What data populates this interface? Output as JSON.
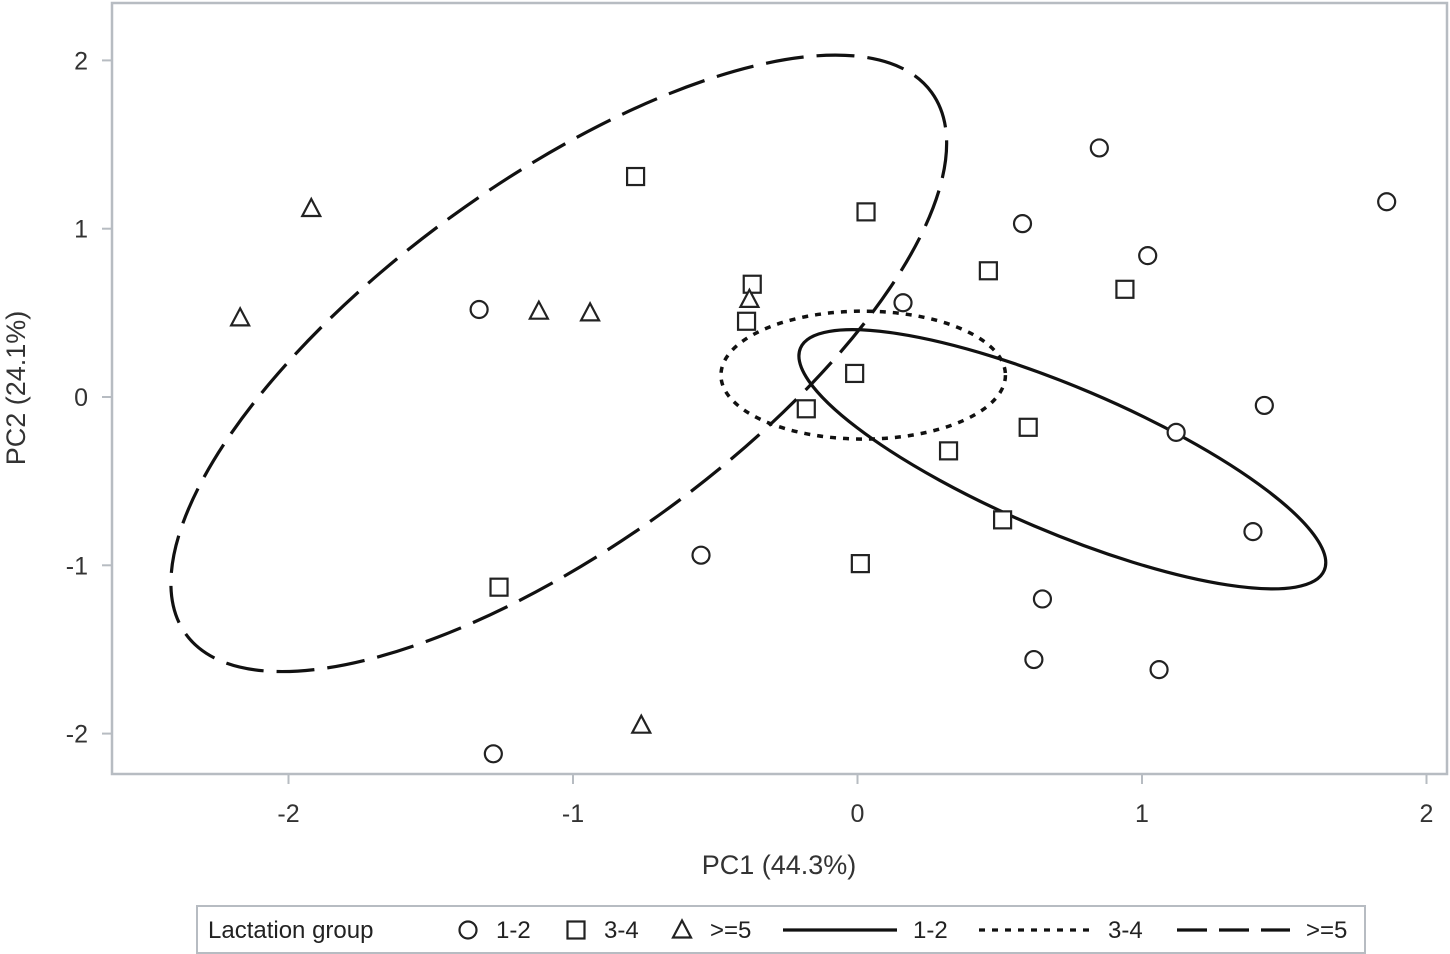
{
  "chart_data": {
    "type": "scatter",
    "title": "",
    "xlabel": "PC1 (44.3%)",
    "ylabel": "PC2 (24.1%)",
    "xlim": [
      -2.6,
      2.1
    ],
    "ylim": [
      -2.25,
      2.35
    ],
    "xticks": [
      -2,
      -1,
      0,
      1,
      2
    ],
    "yticks": [
      -2,
      -1,
      0,
      1,
      2
    ],
    "xtick_labels": [
      "-2",
      "-1",
      "0",
      "1",
      "2"
    ],
    "ytick_labels": [
      "-2",
      "-1",
      "0",
      "1",
      "2"
    ],
    "grid": false,
    "legend_position": "bottom",
    "legend_title": "Lactation group",
    "series": [
      {
        "name": "1-2",
        "marker": "circle",
        "points": [
          [
            -1.33,
            0.52
          ],
          [
            -1.28,
            -2.12
          ],
          [
            -0.55,
            -0.94
          ],
          [
            0.16,
            0.56
          ],
          [
            0.58,
            1.03
          ],
          [
            0.62,
            -1.56
          ],
          [
            0.65,
            -1.2
          ],
          [
            0.85,
            1.48
          ],
          [
            1.02,
            0.84
          ],
          [
            1.06,
            -1.62
          ],
          [
            1.12,
            -0.21
          ],
          [
            1.39,
            -0.8
          ],
          [
            1.43,
            -0.05
          ],
          [
            1.86,
            1.16
          ]
        ]
      },
      {
        "name": "3-4",
        "marker": "square",
        "points": [
          [
            -0.78,
            1.31
          ],
          [
            -1.26,
            -1.13
          ],
          [
            -0.37,
            0.67
          ],
          [
            -0.39,
            0.45
          ],
          [
            0.03,
            1.1
          ],
          [
            -0.18,
            -0.07
          ],
          [
            -0.01,
            0.14
          ],
          [
            0.01,
            -0.99
          ],
          [
            0.32,
            -0.32
          ],
          [
            0.46,
            0.75
          ],
          [
            0.6,
            -0.18
          ],
          [
            0.51,
            -0.73
          ],
          [
            0.94,
            0.64
          ]
        ]
      },
      {
        "name": ">=5",
        "marker": "triangle",
        "points": [
          [
            -2.17,
            0.47
          ],
          [
            -1.92,
            1.12
          ],
          [
            -1.12,
            0.51
          ],
          [
            -0.94,
            0.5
          ],
          [
            -0.38,
            0.58
          ],
          [
            -0.76,
            -1.95
          ]
        ]
      }
    ],
    "ellipses": [
      {
        "name": "1-2",
        "line": "solid",
        "cx": 0.72,
        "cy": -0.37,
        "rx": 1.0,
        "ry": 0.43,
        "angle_deg": 23
      },
      {
        "name": "3-4",
        "line": "dotted",
        "cx": 0.02,
        "cy": 0.13,
        "rx": 0.5,
        "ry": 0.38,
        "angle_deg": 0
      },
      {
        "name": ">=5",
        "line": "dashed",
        "cx": -1.05,
        "cy": 0.2,
        "rx": 1.62,
        "ry": 1.08,
        "angle_deg": -36
      }
    ],
    "legend": {
      "title": "Lactation group",
      "entries": [
        {
          "label": "1-2",
          "kind": "marker",
          "symbol": "circle"
        },
        {
          "label": "3-4",
          "kind": "marker",
          "symbol": "square"
        },
        {
          "label": ">=5",
          "kind": "marker",
          "symbol": "triangle"
        },
        {
          "label": "1-2",
          "kind": "line",
          "style": "solid"
        },
        {
          "label": "3-4",
          "kind": "line",
          "style": "dotted"
        },
        {
          "label": ">=5",
          "kind": "line",
          "style": "dashed"
        }
      ]
    },
    "colors": {
      "axis": "#b7bcc2",
      "ink": "#222222",
      "background": "#ffffff"
    }
  }
}
